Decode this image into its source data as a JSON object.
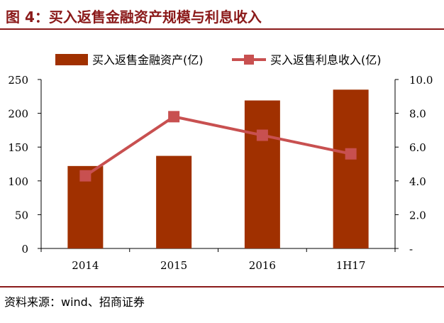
{
  "title": "图 4：买入返售金融资产规模与利息收入",
  "source": "资料来源：wind、招商证券",
  "chart_data": {
    "type": "bar+line",
    "categories": [
      "2014",
      "2015",
      "2016",
      "1H17"
    ],
    "series": [
      {
        "name": "买入返售金融资产(亿)",
        "type": "bar",
        "axis": "left",
        "values": [
          122,
          137,
          219,
          235
        ],
        "color": "#a03000"
      },
      {
        "name": "买入返售利息收入(亿)",
        "type": "line",
        "axis": "right",
        "values": [
          4.3,
          7.8,
          6.7,
          5.6
        ],
        "color": "#c85050"
      }
    ],
    "y_left": {
      "ylim": [
        0,
        250
      ],
      "ticks": [
        "0",
        "50",
        "100",
        "150",
        "200",
        "250"
      ],
      "tick_values": [
        0,
        50,
        100,
        150,
        200,
        250
      ]
    },
    "y_right": {
      "ylim": [
        0,
        10
      ],
      "ticks": [
        "-",
        "2.0",
        "4.0",
        "6.0",
        "8.0",
        "10.0"
      ],
      "tick_values": [
        0,
        2,
        4,
        6,
        8,
        10
      ]
    },
    "legend_position": "top",
    "grid": false
  }
}
